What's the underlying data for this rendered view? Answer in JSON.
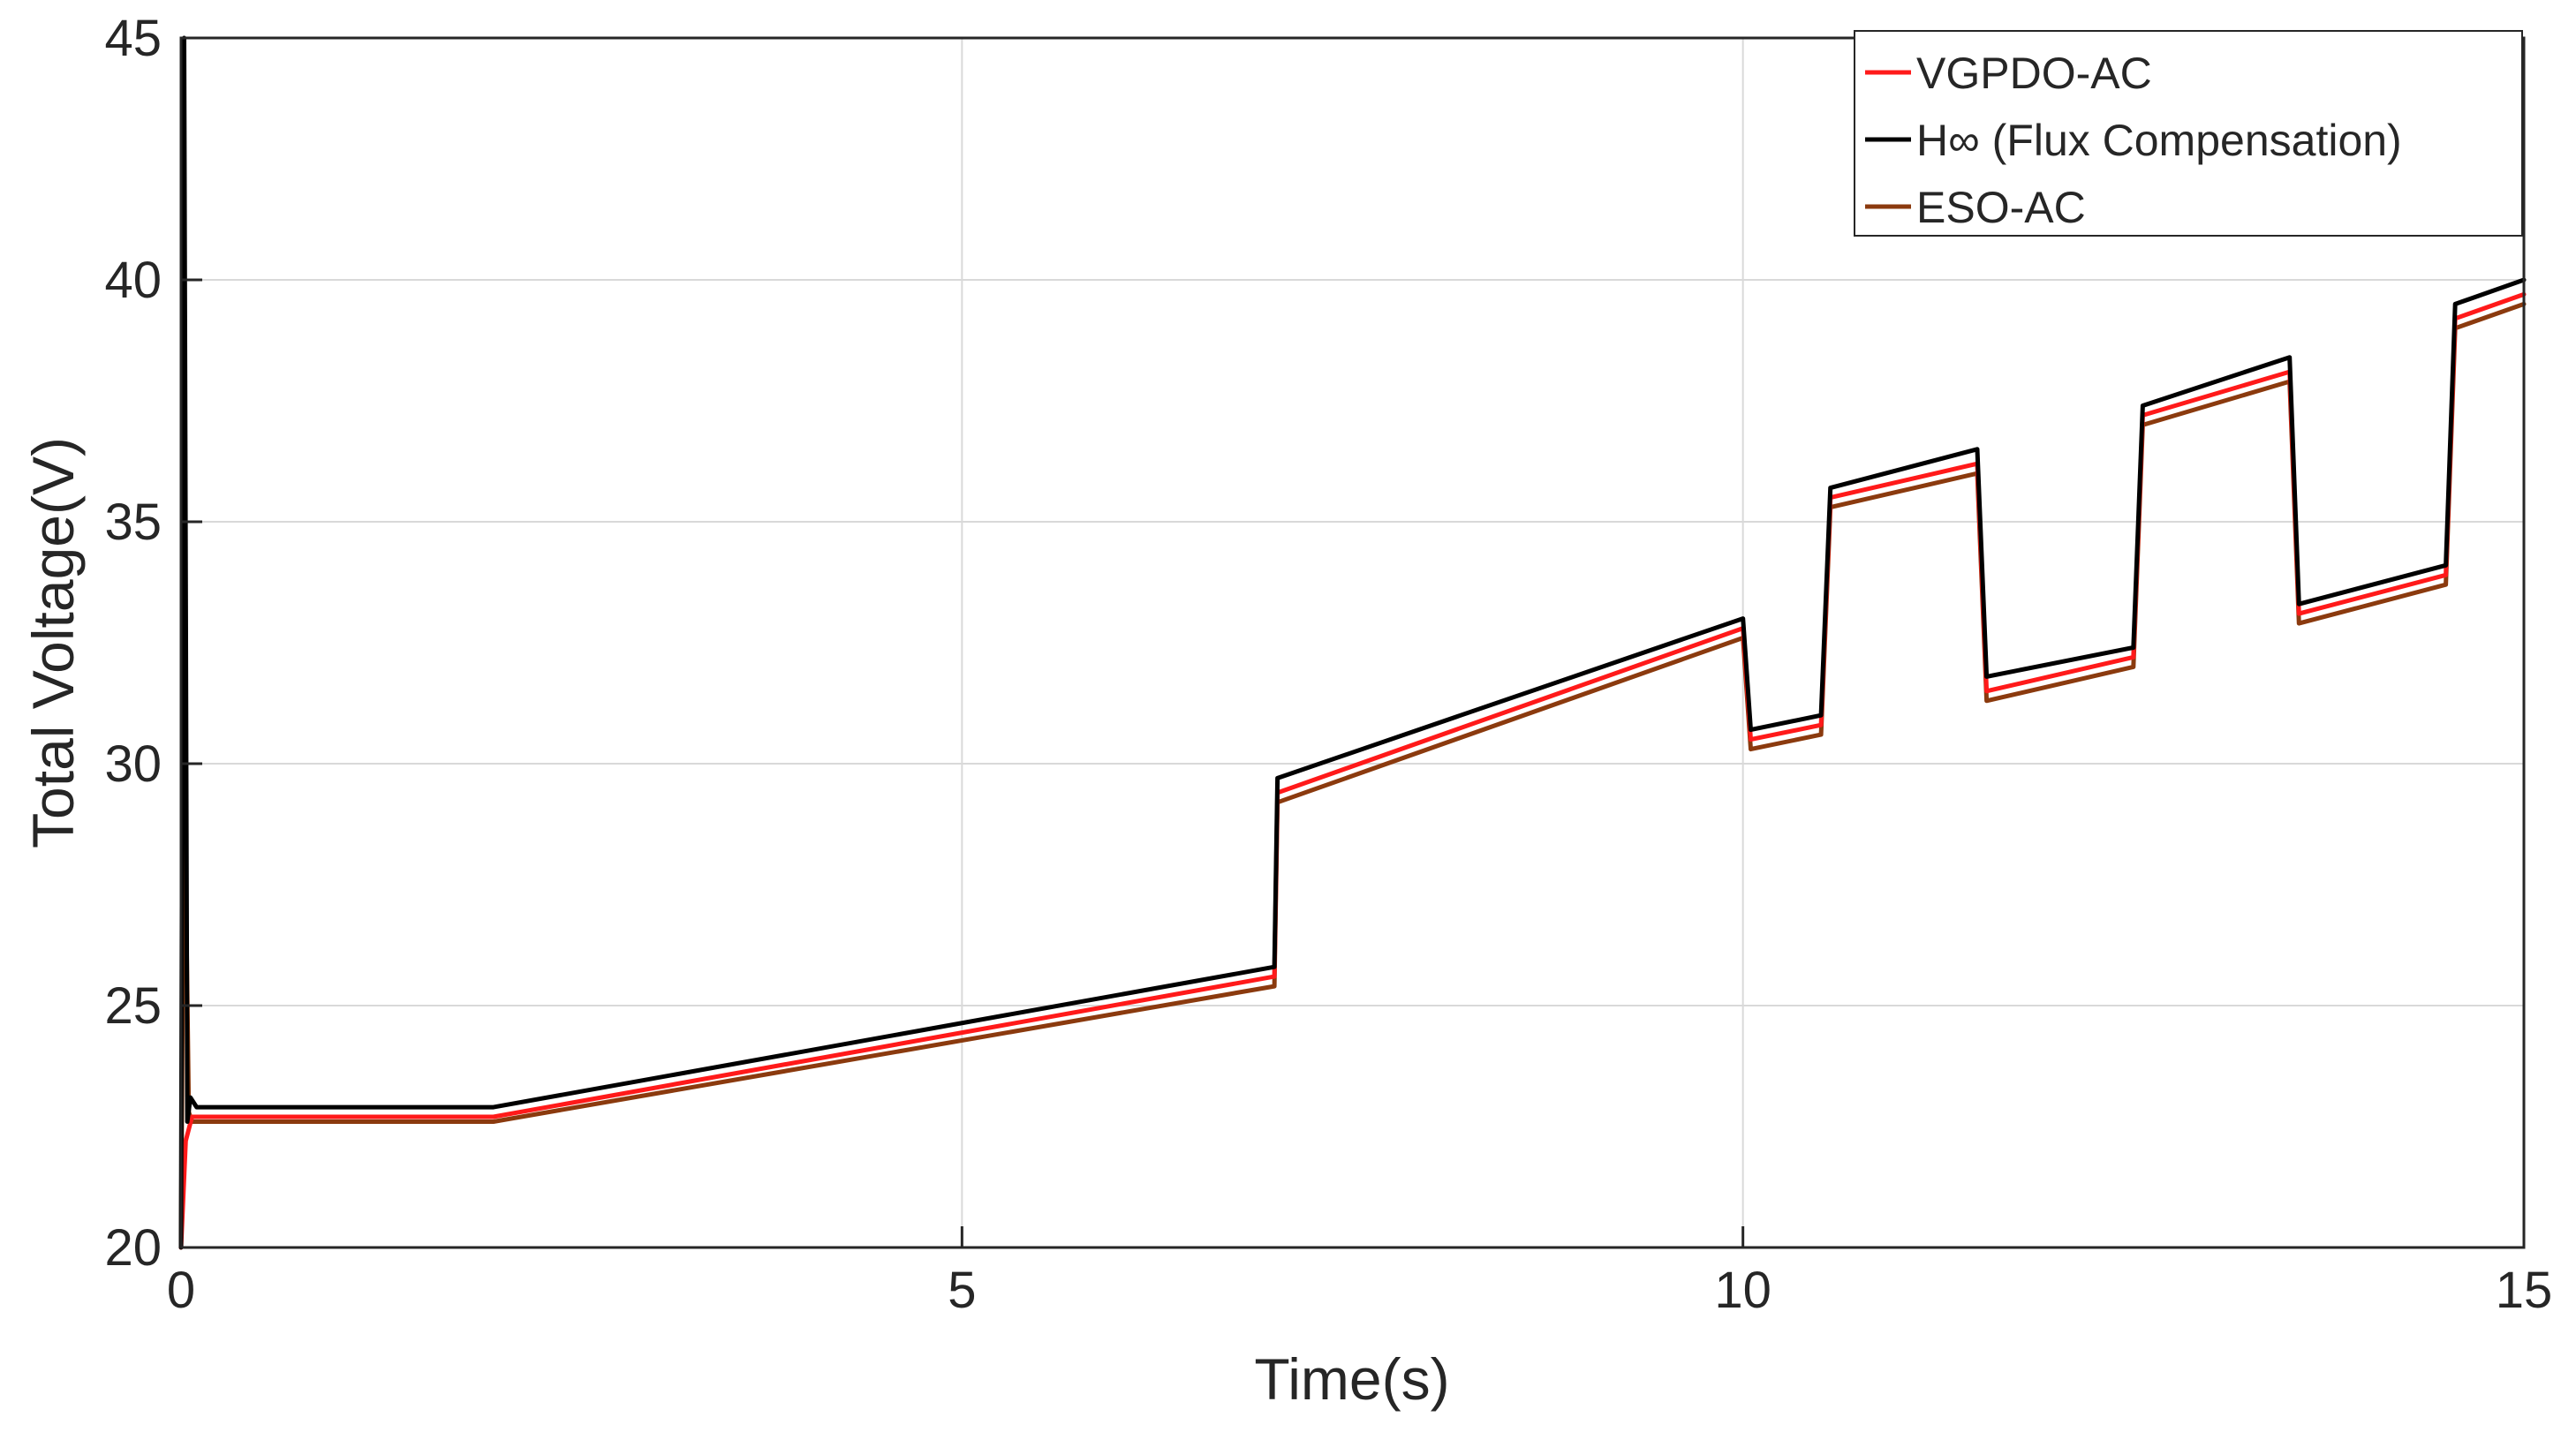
{
  "chart_data": {
    "type": "line",
    "title": "",
    "xlabel": "Time(s)",
    "ylabel": "Total Voltage(V)",
    "xlim": [
      0,
      15
    ],
    "ylim": [
      20,
      45
    ],
    "xticks": [
      "0",
      "5",
      "10",
      "15"
    ],
    "yticks": [
      "20",
      "25",
      "30",
      "35",
      "40",
      "45"
    ],
    "grid": true,
    "legend_position": "top-right",
    "series": [
      {
        "name": "ESO-AC",
        "color": "#8B3A0E",
        "points": [
          [
            0,
            20
          ],
          [
            0.02,
            30.3
          ],
          [
            0.05,
            22.8
          ],
          [
            0.07,
            22.6
          ],
          [
            2,
            22.6
          ],
          [
            7,
            25.4
          ],
          [
            7.02,
            29.2
          ],
          [
            10,
            32.6
          ],
          [
            10.05,
            30.3
          ],
          [
            10.5,
            30.6
          ],
          [
            10.56,
            35.3
          ],
          [
            11.5,
            36.0
          ],
          [
            11.56,
            31.3
          ],
          [
            12.5,
            32.0
          ],
          [
            12.56,
            37.0
          ],
          [
            13.5,
            37.9
          ],
          [
            13.56,
            32.9
          ],
          [
            14.5,
            33.7
          ],
          [
            14.56,
            39.0
          ],
          [
            15,
            39.5
          ]
        ]
      },
      {
        "name": "VGPDO-AC",
        "color": "#FF1A1A",
        "points": [
          [
            0,
            20
          ],
          [
            0.03,
            22.2
          ],
          [
            0.07,
            22.7
          ],
          [
            2,
            22.7
          ],
          [
            7,
            25.6
          ],
          [
            7.02,
            29.4
          ],
          [
            10,
            32.8
          ],
          [
            10.05,
            30.5
          ],
          [
            10.5,
            30.8
          ],
          [
            10.56,
            35.5
          ],
          [
            11.5,
            36.2
          ],
          [
            11.56,
            31.5
          ],
          [
            12.5,
            32.2
          ],
          [
            12.56,
            37.2
          ],
          [
            13.5,
            38.1
          ],
          [
            13.56,
            33.1
          ],
          [
            14.5,
            33.9
          ],
          [
            14.56,
            39.2
          ],
          [
            15,
            39.7
          ]
        ]
      },
      {
        "name": "H∞ (Flux Compensation)",
        "color": "#000000",
        "points": [
          [
            0,
            20
          ],
          [
            0.02,
            45
          ],
          [
            0.04,
            22.6
          ],
          [
            0.06,
            23.1
          ],
          [
            0.1,
            22.9
          ],
          [
            2,
            22.9
          ],
          [
            7,
            25.8
          ],
          [
            7.02,
            29.7
          ],
          [
            10,
            33.0
          ],
          [
            10.05,
            30.7
          ],
          [
            10.5,
            31.0
          ],
          [
            10.56,
            35.7
          ],
          [
            11.5,
            36.5
          ],
          [
            11.56,
            31.8
          ],
          [
            12.5,
            32.4
          ],
          [
            12.56,
            37.4
          ],
          [
            13.5,
            38.4
          ],
          [
            13.56,
            33.3
          ],
          [
            14.5,
            34.1
          ],
          [
            14.56,
            39.5
          ],
          [
            15,
            40.0
          ]
        ]
      }
    ],
    "legend": [
      {
        "label": "VGPDO-AC",
        "color": "#FF1A1A"
      },
      {
        "label": "H∞ (Flux Compensation)",
        "color": "#000000"
      },
      {
        "label": "ESO-AC",
        "color": "#8B3A0E"
      }
    ]
  }
}
